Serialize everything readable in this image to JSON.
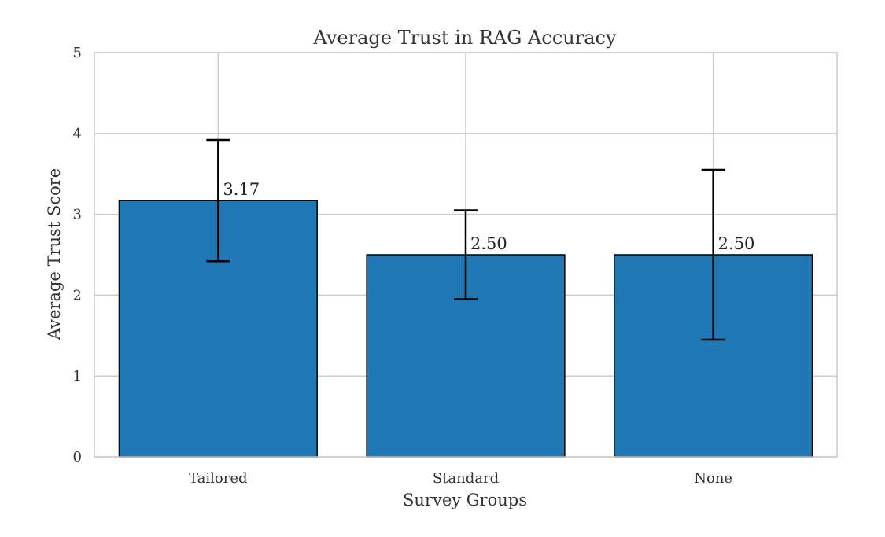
{
  "chart_data": {
    "type": "bar",
    "title": "Average Trust in RAG Accuracy",
    "xlabel": "Survey Groups",
    "ylabel": "Average Trust Score",
    "categories": [
      "Tailored",
      "Standard",
      "None"
    ],
    "values": [
      3.17,
      2.5,
      2.5
    ],
    "error_low": [
      2.42,
      1.95,
      1.45
    ],
    "error_high": [
      3.92,
      3.05,
      3.55
    ],
    "data_labels": [
      "3.17",
      "2.50",
      "2.50"
    ],
    "ylim": [
      0,
      5
    ],
    "yticks": [
      "0",
      "1",
      "2",
      "3",
      "4",
      "5"
    ],
    "grid": true,
    "bar_color": "#1f77b4",
    "bar_edge_color": "#000000",
    "grid_color": "#cccccc"
  }
}
